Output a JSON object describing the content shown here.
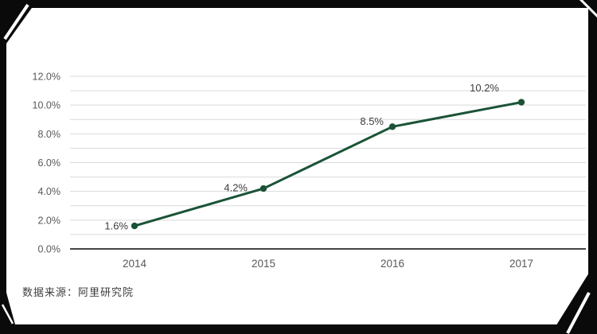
{
  "source_note": "数据来源：阿里研究院",
  "colors": {
    "line": "#1a5336",
    "grid": "#d9d9d9",
    "axis": "#454545",
    "tick_label": "#595959",
    "data_label": "#3d3d3d",
    "frame": "#0a0a0a",
    "background": "#ffffff"
  },
  "chart_data": {
    "type": "line",
    "categories": [
      "2014",
      "2015",
      "2016",
      "2017"
    ],
    "values": [
      1.6,
      4.2,
      8.5,
      10.2
    ],
    "data_labels": [
      "1.6%",
      "4.2%",
      "8.5%",
      "10.2%"
    ],
    "title": "",
    "xlabel": "",
    "ylabel": "",
    "ylim": [
      0,
      12
    ],
    "y_major_step": 2,
    "y_minor_step": 1,
    "y_tick_labels": [
      "12.0%",
      "10.0%",
      "8.0%",
      "6.0%",
      "4.0%",
      "2.0%",
      "0.0%"
    ],
    "grid": true,
    "legend": "none",
    "marker": "circle"
  }
}
